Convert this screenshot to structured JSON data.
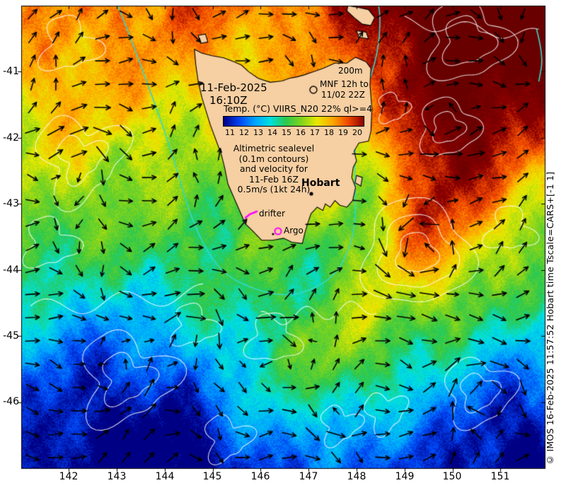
{
  "map": {
    "extent": {
      "lon_min": 141.0,
      "lon_max": 151.9,
      "lat_min": -47.0,
      "lat_max": -40.0
    },
    "annotations": {
      "date": "11-Feb-2025",
      "time": "16:10Z",
      "depth_contour": "200m",
      "mnf_line1": "MNF 12h to",
      "mnf_line2": "11/02 22Z",
      "city": "Hobart",
      "drifter": "drifter",
      "argo": "Argo",
      "credit": "© IMOS 16-Feb-2025 11:57:52 Hobart time Tscale=CARS+[-1 1]"
    },
    "colorbar": {
      "title": "Temp. (°C) VIIRS_N20 22% ql>=4",
      "ticks": [
        "11",
        "12",
        "13",
        "14",
        "15",
        "16",
        "17",
        "18",
        "19",
        "20"
      ],
      "colors": [
        "#000085",
        "#0042f0",
        "#00a2ff",
        "#00e0e0",
        "#2cc84c",
        "#7fd41e",
        "#e8e800",
        "#ffa800",
        "#f04800",
        "#8b0000"
      ]
    },
    "legend_lines": [
      "Altimetric sealevel",
      "(0.1m contours)",
      "and velocity for",
      "11-Feb 16Z",
      "0.5m/s (1kt 24h)"
    ],
    "x_axis_ticks": [
      "142",
      "143",
      "144",
      "145",
      "146",
      "147",
      "148",
      "149",
      "150",
      "151"
    ],
    "y_axis_ticks": [
      "-41",
      "-42",
      "-43",
      "-44",
      "-45",
      "-46"
    ],
    "colors": {
      "land": "#f6cfa2",
      "coastline": "#000000",
      "sealevel_contour": "#ffffff",
      "shelf_contour": "#35d8c8",
      "marker_magenta": "#ff00ff",
      "arrow": "#000000",
      "background": "#ffffff"
    }
  }
}
